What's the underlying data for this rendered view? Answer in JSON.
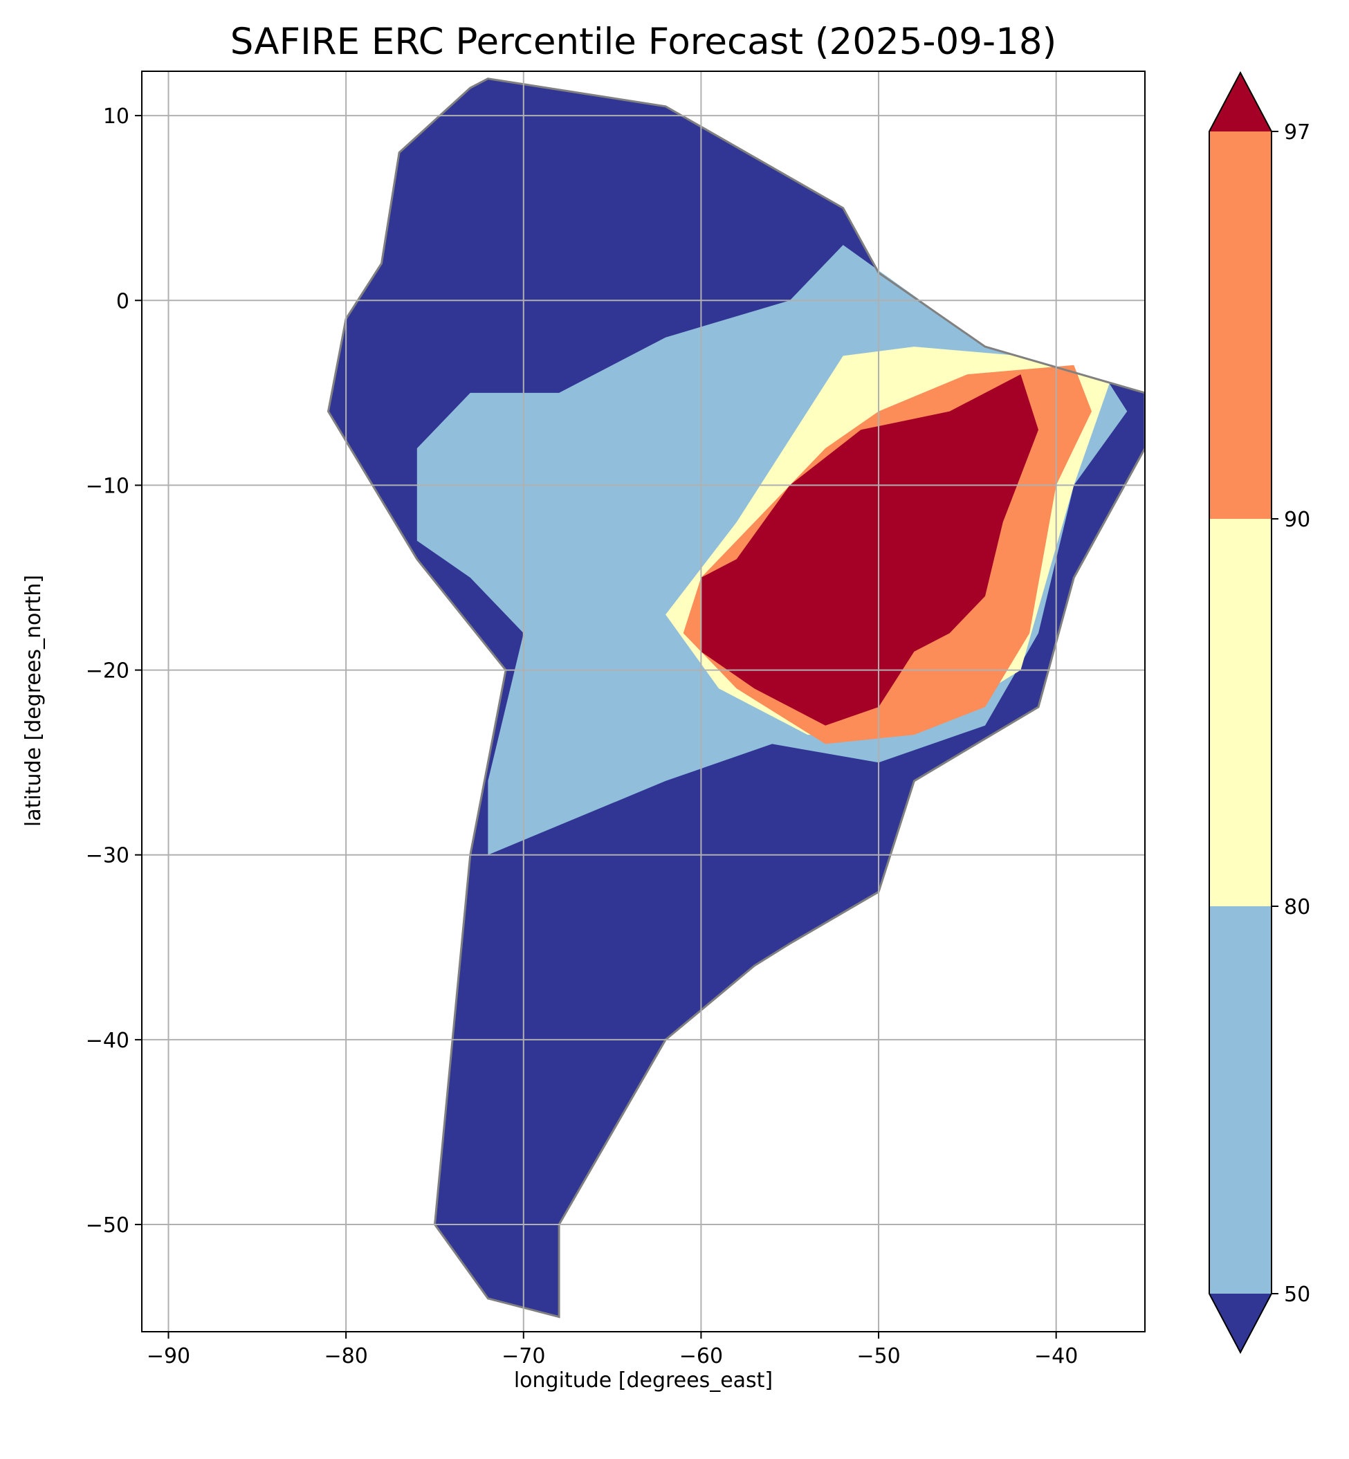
{
  "title": "SAFIRE ERC Percentile Forecast (2025-09-18)",
  "axes": {
    "xlabel": "longitude [degrees_east]",
    "ylabel": "latitude [degrees_north]",
    "xlim": [
      -91.5,
      -35
    ],
    "ylim": [
      -55.8,
      12.4
    ],
    "xticks": [
      -90,
      -80,
      -70,
      -60,
      -50,
      -40
    ],
    "yticks": [
      10,
      0,
      -10,
      -20,
      -30,
      -40,
      -50
    ],
    "xtick_labels": [
      "−90",
      "−80",
      "−70",
      "−60",
      "−50",
      "−40"
    ],
    "ytick_labels": [
      "10",
      "0",
      "−10",
      "−20",
      "−30",
      "−40",
      "−50"
    ],
    "grid": true
  },
  "colorbar": {
    "extend": "both",
    "boundaries": [
      50,
      80,
      90,
      97
    ],
    "tick_labels": [
      "50",
      "80",
      "90",
      "97"
    ],
    "colors": {
      "under": "#313695",
      "50-80": "#91bfdb",
      "80-90": "#ffffbf",
      "90-97": "#fc8d59",
      "over": "#a50026"
    }
  },
  "map_style": {
    "boundary_color": "#808080",
    "grid_color": "#b0b0b0"
  },
  "chart_data": {
    "type": "heatmap",
    "title": "SAFIRE ERC Percentile Forecast (2025-09-18)",
    "xlabel": "longitude [degrees_east]",
    "ylabel": "latitude [degrees_north]",
    "xlim": [
      -91.5,
      -35
    ],
    "ylim": [
      -55.8,
      12.4
    ],
    "grid": true,
    "legend": "colorbar-right",
    "categories": [
      "<50",
      "50-80",
      "80-90",
      "90-97",
      ">97"
    ],
    "regions": [
      {
        "category": "<50",
        "lonlat": [
          [
            -72,
            12
          ],
          [
            -62,
            10.5
          ],
          [
            -52,
            5
          ],
          [
            -50,
            1.5
          ],
          [
            -44,
            -2.5
          ],
          [
            -35,
            -5
          ],
          [
            -35,
            -8
          ],
          [
            -39,
            -15
          ],
          [
            -41,
            -22
          ],
          [
            -48,
            -26
          ],
          [
            -50,
            -32
          ],
          [
            -55,
            -34.8
          ],
          [
            -57,
            -36
          ],
          [
            -62,
            -40
          ],
          [
            -65,
            -45
          ],
          [
            -68,
            -50
          ],
          [
            -68,
            -55
          ],
          [
            -72,
            -54
          ],
          [
            -75,
            -50
          ],
          [
            -74,
            -40
          ],
          [
            -73,
            -30
          ],
          [
            -71,
            -20
          ],
          [
            -76,
            -14
          ],
          [
            -81,
            -6
          ],
          [
            -80,
            -1
          ],
          [
            -78,
            2
          ],
          [
            -77,
            8
          ],
          [
            -73,
            11.5
          ]
        ]
      },
      {
        "category": "50-80",
        "lonlat": [
          [
            -76,
            -8
          ],
          [
            -73,
            -5
          ],
          [
            -68,
            -5
          ],
          [
            -62,
            -2
          ],
          [
            -55,
            0
          ],
          [
            -52,
            3
          ],
          [
            -44,
            -2.5
          ],
          [
            -37,
            -4.5
          ],
          [
            -36,
            -6
          ],
          [
            -39,
            -10
          ],
          [
            -41,
            -18
          ],
          [
            -44,
            -23
          ],
          [
            -50,
            -25
          ],
          [
            -56,
            -24
          ],
          [
            -62,
            -26
          ],
          [
            -67,
            -28
          ],
          [
            -72,
            -30
          ],
          [
            -72,
            -26
          ],
          [
            -70,
            -18
          ],
          [
            -73,
            -15
          ],
          [
            -76,
            -13
          ]
        ]
      },
      {
        "category": "80-90",
        "lonlat": [
          [
            -58,
            -12
          ],
          [
            -52,
            -3
          ],
          [
            -48,
            -2.5
          ],
          [
            -42,
            -3
          ],
          [
            -37,
            -4.5
          ],
          [
            -39,
            -10
          ],
          [
            -42,
            -20
          ],
          [
            -48,
            -23.5
          ],
          [
            -54,
            -23.5
          ],
          [
            -59,
            -21
          ],
          [
            -62,
            -17
          ]
        ]
      },
      {
        "category": "90-97",
        "lonlat": [
          [
            -58,
            -13
          ],
          [
            -53,
            -8
          ],
          [
            -50,
            -6
          ],
          [
            -45,
            -4
          ],
          [
            -39,
            -3.5
          ],
          [
            -38,
            -6
          ],
          [
            -40,
            -10
          ],
          [
            -41.5,
            -18
          ],
          [
            -44,
            -22
          ],
          [
            -48,
            -23.5
          ],
          [
            -53,
            -24
          ],
          [
            -58,
            -21
          ],
          [
            -61,
            -18
          ],
          [
            -60,
            -15
          ]
        ]
      },
      {
        "category": ">97",
        "lonlat": [
          [
            -58,
            -14
          ],
          [
            -55,
            -10
          ],
          [
            -51,
            -7
          ],
          [
            -46,
            -6
          ],
          [
            -42,
            -4
          ],
          [
            -41,
            -7
          ],
          [
            -43,
            -12
          ],
          [
            -44,
            -16
          ],
          [
            -46,
            -18
          ],
          [
            -48,
            -19
          ],
          [
            -50,
            -22
          ],
          [
            -53,
            -23
          ],
          [
            -57,
            -21
          ],
          [
            -60,
            -19
          ],
          [
            -60,
            -15
          ]
        ]
      }
    ]
  }
}
